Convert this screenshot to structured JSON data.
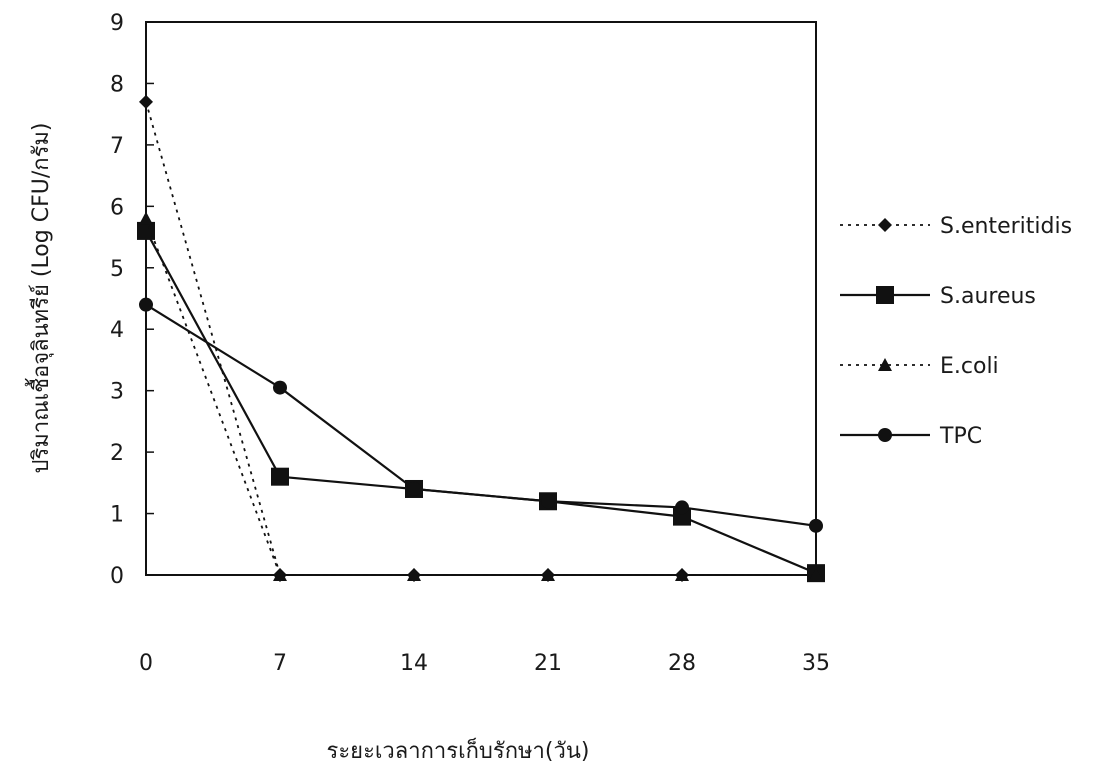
{
  "chart_data": {
    "type": "line",
    "title": "",
    "xlabel": "ระยะเวลาการเก็บรักษา(วัน)",
    "ylabel": "ปริมาณเชื้อจุลินทรีย์ (Log CFU/กรัม)",
    "x": [
      0,
      7,
      14,
      21,
      28,
      35
    ],
    "x_tick_labels": [
      "0",
      "7",
      "14",
      "21",
      "28",
      "35"
    ],
    "ylim": [
      0,
      9
    ],
    "y_ticks": [
      0,
      1,
      2,
      3,
      4,
      5,
      6,
      7,
      8,
      9
    ],
    "grid": false,
    "legend_position": "right",
    "series": [
      {
        "name": "S.enteritidis",
        "values": [
          7.7,
          0,
          0,
          0,
          0,
          0
        ],
        "line_style": "dotted",
        "marker": "diamond",
        "color": "#111111"
      },
      {
        "name": "S.aureus",
        "values": [
          5.6,
          1.6,
          1.4,
          1.2,
          0.95,
          0.03
        ],
        "line_style": "solid",
        "marker": "square",
        "color": "#111111"
      },
      {
        "name": "E.coli",
        "values": [
          5.8,
          0,
          0,
          0,
          0,
          0
        ],
        "line_style": "dotted",
        "marker": "triangle",
        "color": "#111111"
      },
      {
        "name": "TPC",
        "values": [
          4.4,
          3.05,
          1.4,
          1.2,
          1.1,
          0.8
        ],
        "line_style": "solid",
        "marker": "circle",
        "color": "#111111"
      }
    ]
  }
}
